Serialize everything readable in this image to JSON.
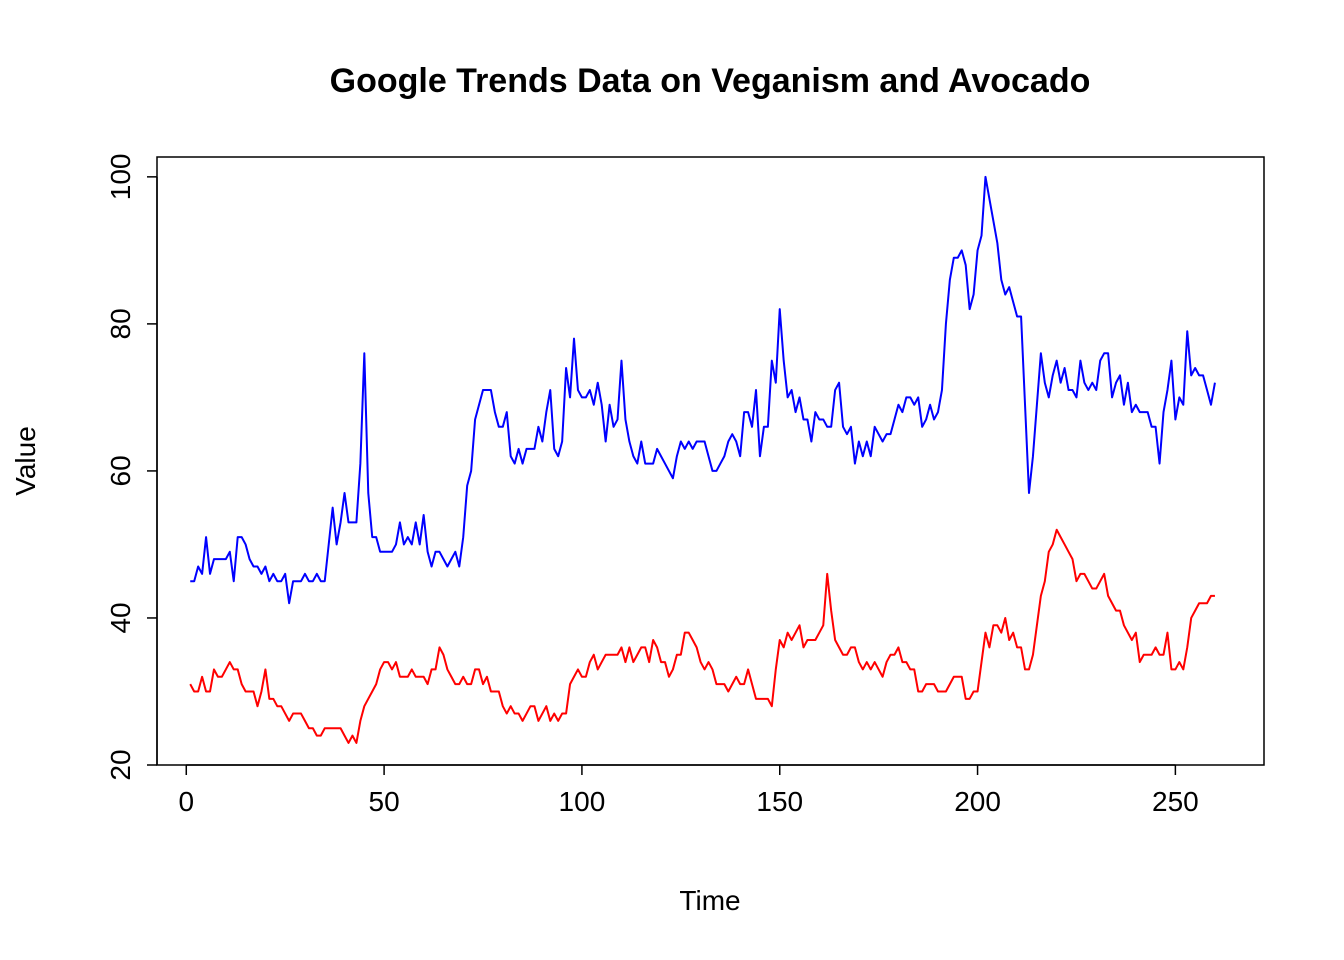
{
  "chart_data": {
    "type": "line",
    "title": "Google Trends Data on Veganism and Avocado",
    "xlabel": "Time",
    "ylabel": "Value",
    "xlim": [
      -7.4,
      272.4
    ],
    "ylim": [
      20,
      102.7
    ],
    "xticks": [
      0,
      50,
      100,
      150,
      200,
      250
    ],
    "yticks": [
      20,
      40,
      60,
      80,
      100
    ],
    "grid": false,
    "legend": "none",
    "series": [
      {
        "color": "#0000ff",
        "values": [
          45,
          45,
          47,
          46,
          51,
          46,
          48,
          48,
          48,
          48,
          49,
          45,
          51,
          51,
          50,
          48,
          47,
          47,
          46,
          47,
          45,
          46,
          45,
          45,
          46,
          42,
          45,
          45,
          45,
          46,
          45,
          45,
          46,
          45,
          45,
          50,
          55,
          50,
          53,
          57,
          53,
          53,
          53,
          61,
          76,
          57,
          51,
          51,
          49,
          49,
          49,
          49,
          50,
          53,
          50,
          51,
          50,
          53,
          50,
          54,
          49,
          47,
          49,
          49,
          48,
          47,
          48,
          49,
          47,
          51,
          58,
          60,
          67,
          69,
          71,
          71,
          71,
          68,
          66,
          66,
          68,
          62,
          61,
          63,
          61,
          63,
          63,
          63,
          66,
          64,
          68,
          71,
          63,
          62,
          64,
          74,
          70,
          78,
          71,
          70,
          70,
          71,
          69,
          72,
          69,
          64,
          69,
          66,
          67,
          75,
          67,
          64,
          62,
          61,
          64,
          61,
          61,
          61,
          63,
          62,
          61,
          60,
          59,
          62,
          64,
          63,
          64,
          63,
          64,
          64,
          64,
          62,
          60,
          60,
          61,
          62,
          64,
          65,
          64,
          62,
          68,
          68,
          66,
          71,
          62,
          66,
          66,
          75,
          72,
          82,
          75,
          70,
          71,
          68,
          70,
          67,
          67,
          64,
          68,
          67,
          67,
          66,
          66,
          71,
          72,
          66,
          65,
          66,
          61,
          64,
          62,
          64,
          62,
          66,
          65,
          64,
          65,
          65,
          67,
          69,
          68,
          70,
          70,
          69,
          70,
          66,
          67,
          69,
          67,
          68,
          71,
          80,
          86,
          89,
          89,
          90,
          88,
          82,
          84,
          90,
          92,
          100,
          97,
          94,
          91,
          86,
          84,
          85,
          83,
          81,
          81,
          69,
          57,
          62,
          69,
          76,
          72,
          70,
          73,
          75,
          72,
          74,
          71,
          71,
          70,
          75,
          72,
          71,
          72,
          71,
          75,
          76,
          76,
          70,
          72,
          73,
          69,
          72,
          68,
          69,
          68,
          68,
          68,
          66,
          66,
          61,
          68,
          71,
          75,
          67,
          70,
          69,
          79,
          73,
          74,
          73,
          73,
          71,
          69,
          72
        ]
      },
      {
        "color": "#ff0000",
        "values": [
          31,
          30,
          30,
          32,
          30,
          30,
          33,
          32,
          32,
          33,
          34,
          33,
          33,
          31,
          30,
          30,
          30,
          28,
          30,
          33,
          29,
          29,
          28,
          28,
          27,
          26,
          27,
          27,
          27,
          26,
          25,
          25,
          24,
          24,
          25,
          25,
          25,
          25,
          25,
          24,
          23,
          24,
          23,
          26,
          28,
          29,
          30,
          31,
          33,
          34,
          34,
          33,
          34,
          32,
          32,
          32,
          33,
          32,
          32,
          32,
          31,
          33,
          33,
          36,
          35,
          33,
          32,
          31,
          31,
          32,
          31,
          31,
          33,
          33,
          31,
          32,
          30,
          30,
          30,
          28,
          27,
          28,
          27,
          27,
          26,
          27,
          28,
          28,
          26,
          27,
          28,
          26,
          27,
          26,
          27,
          27,
          31,
          32,
          33,
          32,
          32,
          34,
          35,
          33,
          34,
          35,
          35,
          35,
          35,
          36,
          34,
          36,
          34,
          35,
          36,
          36,
          34,
          37,
          36,
          34,
          34,
          32,
          33,
          35,
          35,
          38,
          38,
          37,
          36,
          34,
          33,
          34,
          33,
          31,
          31,
          31,
          30,
          31,
          32,
          31,
          31,
          33,
          31,
          29,
          29,
          29,
          29,
          28,
          33,
          37,
          36,
          38,
          37,
          38,
          39,
          36,
          37,
          37,
          37,
          38,
          39,
          46,
          41,
          37,
          36,
          35,
          35,
          36,
          36,
          34,
          33,
          34,
          33,
          34,
          33,
          32,
          34,
          35,
          35,
          36,
          34,
          34,
          33,
          33,
          30,
          30,
          31,
          31,
          31,
          30,
          30,
          30,
          31,
          32,
          32,
          32,
          29,
          29,
          30,
          30,
          34,
          38,
          36,
          39,
          39,
          38,
          40,
          37,
          38,
          36,
          36,
          33,
          33,
          35,
          39,
          43,
          45,
          49,
          50,
          52,
          51,
          50,
          49,
          48,
          45,
          46,
          46,
          45,
          44,
          44,
          45,
          46,
          43,
          42,
          41,
          41,
          39,
          38,
          37,
          38,
          34,
          35,
          35,
          35,
          36,
          35,
          35,
          38,
          33,
          33,
          34,
          33,
          36,
          40,
          41,
          42,
          42,
          42,
          43,
          43
        ]
      }
    ]
  }
}
